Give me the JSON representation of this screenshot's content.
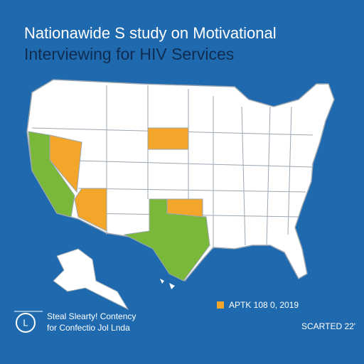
{
  "header": {
    "title_lines": [
      "Nationawide S study on Motivational",
      "Interviewing for HIV Services"
    ]
  },
  "legend": {
    "label": "APTK 108 0, 2019"
  },
  "footer": {
    "logo": "L",
    "org_lines": [
      "Steal Slearty! Contency",
      "for Confectio Jol Lnda"
    ],
    "right": "SCARTED 22'"
  }
}
